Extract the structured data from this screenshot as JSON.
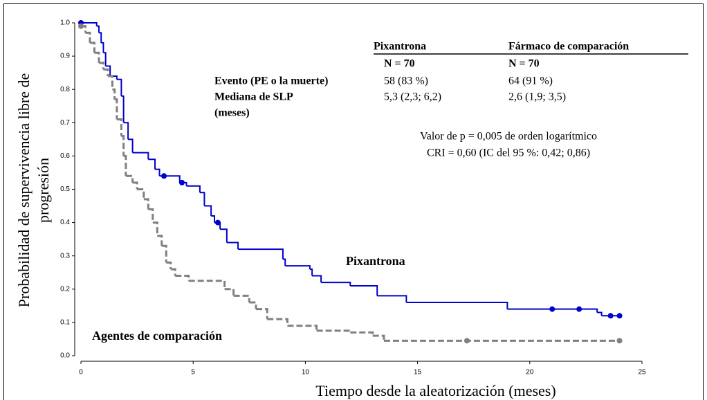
{
  "chart_data": {
    "type": "step",
    "xlabel": "Tiempo desde la aleatorización (meses)",
    "ylabel": [
      "Probabilidad de supervivencia libre de",
      "progresión"
    ],
    "xlim": [
      0,
      25
    ],
    "ylim": [
      0,
      1
    ],
    "xticks": [
      0,
      5,
      10,
      15,
      20,
      25
    ],
    "yticks": [
      {
        "value": 0,
        "label": "0.0"
      },
      0.1,
      0.2,
      0.3,
      0.4,
      0.5,
      0.6,
      0.7,
      0.8,
      0.9,
      {
        "value": 1,
        "label": "1.0"
      }
    ],
    "series": [
      {
        "name": "Pixantrona",
        "color": "#0000cc",
        "dashed": false,
        "x": [
          0,
          0.7,
          0.8,
          0.9,
          1.0,
          1.1,
          1.3,
          1.6,
          1.8,
          1.9,
          2.1,
          2.3,
          3.0,
          3.3,
          3.5,
          4.4,
          4.7,
          5.3,
          5.5,
          5.8,
          5.95,
          6.2,
          6.5,
          7.0,
          9.0,
          9.1,
          10.2,
          10.3,
          10.7,
          12.0,
          13.2,
          14.5,
          19.0,
          23.0,
          23.2,
          24.0
        ],
        "values": [
          1.0,
          0.99,
          0.97,
          0.94,
          0.91,
          0.87,
          0.84,
          0.83,
          0.78,
          0.7,
          0.65,
          0.61,
          0.59,
          0.56,
          0.54,
          0.52,
          0.51,
          0.49,
          0.45,
          0.42,
          0.4,
          0.38,
          0.34,
          0.32,
          0.29,
          0.27,
          0.26,
          0.24,
          0.22,
          0.21,
          0.18,
          0.16,
          0.14,
          0.13,
          0.12,
          0.12
        ],
        "censored": {
          "x": [
            0,
            3.7,
            4.5,
            6.1,
            21.0,
            22.2,
            23.6,
            24.0
          ],
          "values": [
            1.0,
            0.54,
            0.52,
            0.4,
            0.14,
            0.14,
            0.12,
            0.12
          ]
        }
      },
      {
        "name": "Agentes de comparación",
        "color": "#808080",
        "dashed": true,
        "x": [
          0,
          0.2,
          0.4,
          0.6,
          0.8,
          1.0,
          1.2,
          1.4,
          1.5,
          1.6,
          1.8,
          1.9,
          2.0,
          2.3,
          2.5,
          2.8,
          3.0,
          3.2,
          3.4,
          3.6,
          3.8,
          4.0,
          4.2,
          4.8,
          6.4,
          6.8,
          7.5,
          7.8,
          8.3,
          9.2,
          10.5,
          12.0,
          13.0,
          13.5,
          24.0
        ],
        "values": [
          0.99,
          0.97,
          0.94,
          0.91,
          0.88,
          0.86,
          0.84,
          0.8,
          0.77,
          0.71,
          0.66,
          0.6,
          0.54,
          0.52,
          0.5,
          0.47,
          0.44,
          0.4,
          0.36,
          0.33,
          0.28,
          0.26,
          0.24,
          0.225,
          0.2,
          0.18,
          0.16,
          0.14,
          0.11,
          0.09,
          0.075,
          0.07,
          0.06,
          0.045,
          0.045
        ],
        "censored": {
          "x": [
            0,
            17.2,
            24.0
          ],
          "values": [
            0.99,
            0.045,
            0.045
          ]
        }
      }
    ],
    "table": {
      "columns": [
        "Pixantrona",
        "Fármaco de comparación"
      ],
      "n": [
        "N = 70",
        "N = 70"
      ],
      "rows": [
        {
          "label": [
            "Evento (PE o la muerte)"
          ],
          "cells": [
            "58 (83 %)",
            "64 (91 %)"
          ]
        },
        {
          "label": [
            "Mediana de SLP",
            "(meses)"
          ],
          "cells": [
            "5,3 (2,3; 6,2)",
            "2,6 (1,9; 3,5)"
          ]
        }
      ]
    },
    "annotations": [
      "Valor de p = 0,005 de orden logarítmico",
      "CRI = 0,60 (IC del 95 %: 0,42; 0,86)"
    ]
  }
}
